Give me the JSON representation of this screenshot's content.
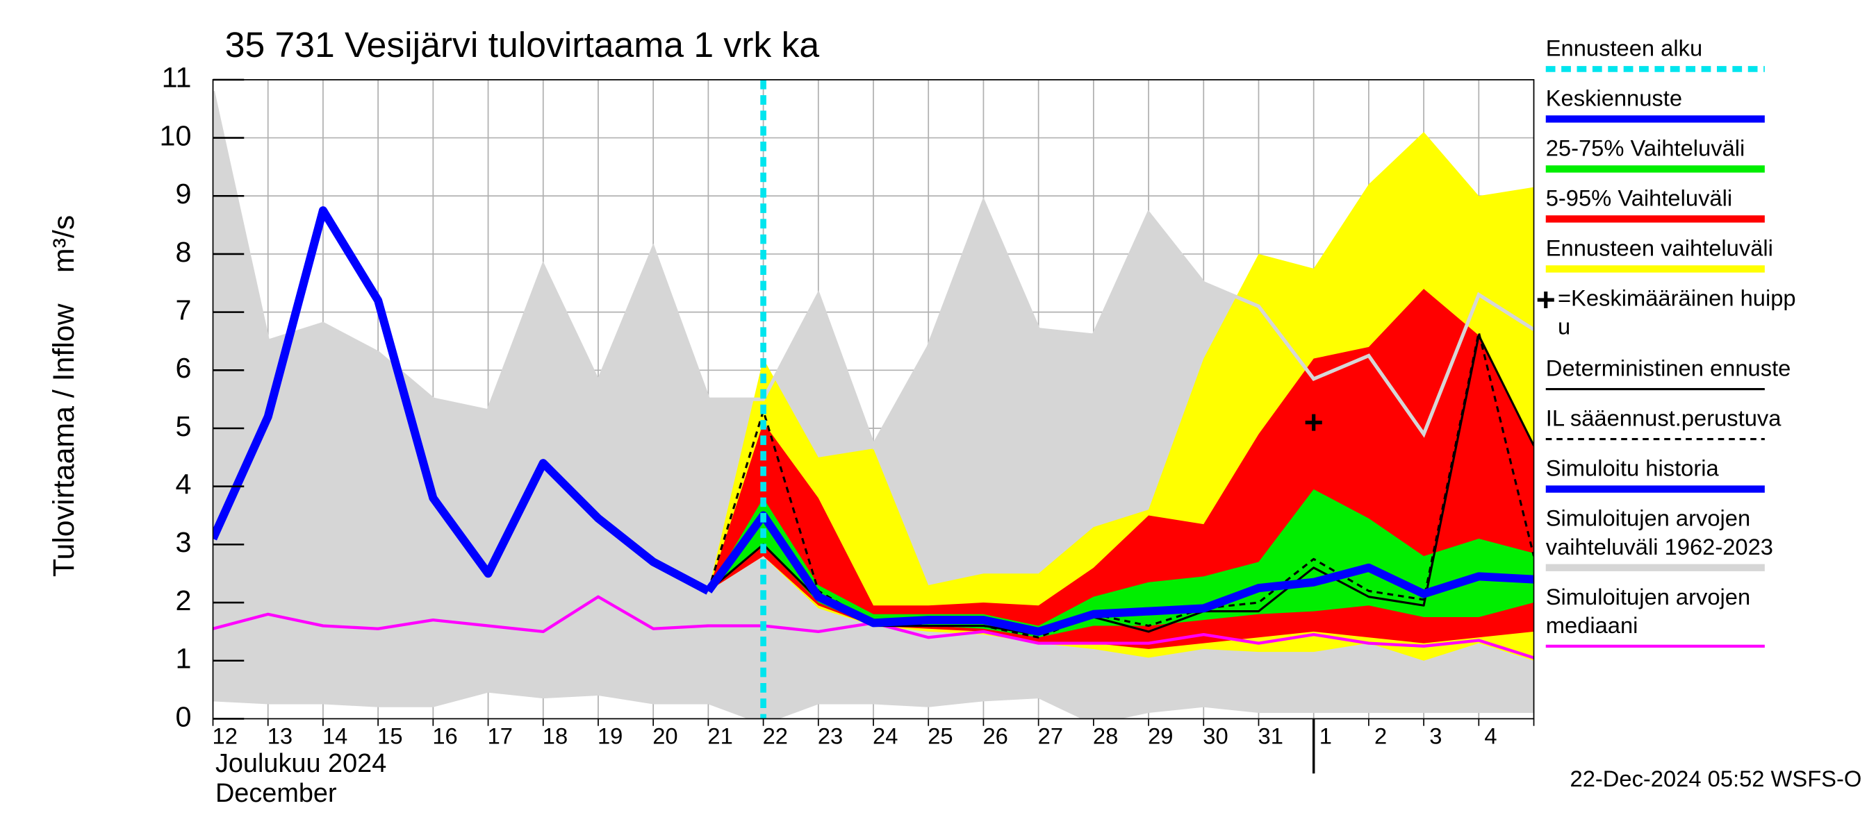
{
  "chart_data": {
    "type": "line",
    "title": "35 731 Vesijärvi tulovirtaama 1 vrk ka",
    "y_label": "Tulovirtaama / Inflow",
    "y_unit": "m³/s",
    "x_label_lines": [
      "Joulukuu  2024",
      "December"
    ],
    "timestamp": "22-Dec-2024 05:52 WSFS-O",
    "categories": [
      "12",
      "13",
      "14",
      "15",
      "16",
      "17",
      "18",
      "19",
      "20",
      "21",
      "22",
      "23",
      "24",
      "25",
      "26",
      "27",
      "28",
      "29",
      "30",
      "31",
      "1",
      "2",
      "3",
      "4",
      null
    ],
    "month_boundaries": [
      20
    ],
    "ylim": [
      0,
      11
    ],
    "yticks": [
      0,
      1,
      2,
      3,
      4,
      5,
      6,
      7,
      8,
      9,
      10,
      11
    ],
    "grid": true,
    "forecast_start": {
      "name": [
        "Ennusteen alku"
      ],
      "color": "#00e5ee",
      "x": 10
    },
    "peak": {
      "name": [
        "=Keskimääräinen huipp",
        "u"
      ],
      "x": 20,
      "y": 5.1
    },
    "bands": [
      {
        "name": [
          "Ennusteen vaihteluväli"
        ],
        "color": "#ffff00",
        "low": [
          null,
          null,
          null,
          null,
          null,
          null,
          null,
          null,
          null,
          2.2,
          2.8,
          1.9,
          1.6,
          1.5,
          1.45,
          1.3,
          1.2,
          1.05,
          1.2,
          1.15,
          1.15,
          1.3,
          1.0,
          1.3,
          1.0
        ],
        "high": [
          null,
          null,
          null,
          null,
          null,
          null,
          null,
          null,
          null,
          2.2,
          6.2,
          4.5,
          4.65,
          2.3,
          2.5,
          2.5,
          3.3,
          3.6,
          6.2,
          8.0,
          7.75,
          9.2,
          10.1,
          9.0,
          9.15
        ]
      },
      {
        "name": [
          "5-95% Vaihteluväli"
        ],
        "color": "#ff0000",
        "low": [
          null,
          null,
          null,
          null,
          null,
          null,
          null,
          null,
          null,
          2.2,
          2.8,
          1.95,
          1.6,
          1.55,
          1.5,
          1.3,
          1.3,
          1.2,
          1.3,
          1.4,
          1.5,
          1.4,
          1.3,
          1.4,
          1.5
        ],
        "high": [
          null,
          null,
          null,
          null,
          null,
          null,
          null,
          null,
          null,
          2.2,
          5.1,
          3.8,
          1.95,
          1.95,
          2.0,
          1.95,
          2.6,
          3.5,
          3.35,
          4.9,
          6.2,
          6.4,
          7.4,
          6.6,
          4.7
        ]
      },
      {
        "name": [
          "25-75% Vaihteluväli"
        ],
        "color": "#00ee00",
        "low": [
          null,
          null,
          null,
          null,
          null,
          null,
          null,
          null,
          null,
          2.2,
          3.0,
          2.0,
          1.6,
          1.6,
          1.55,
          1.4,
          1.6,
          1.6,
          1.7,
          1.8,
          1.85,
          1.95,
          1.75,
          1.75,
          2.0
        ],
        "high": [
          null,
          null,
          null,
          null,
          null,
          null,
          null,
          null,
          null,
          2.2,
          3.8,
          2.3,
          1.8,
          1.8,
          1.8,
          1.6,
          2.1,
          2.35,
          2.45,
          2.7,
          3.95,
          3.45,
          2.8,
          3.1,
          2.85
        ]
      },
      {
        "name": [
          "Simuloitujen arvojen",
          "vaihteluväli 1962-2023"
        ],
        "color": "#d6d6d6",
        "low": [
          0.3,
          0.25,
          0.25,
          0.2,
          0.2,
          0.45,
          0.35,
          0.4,
          0.25,
          0.25,
          -0.1,
          0.25,
          0.25,
          0.2,
          0.3,
          0.35,
          -0.1,
          0.1,
          0.2,
          0.1,
          0.1,
          0.1,
          0.1,
          0.1,
          0.1
        ],
        "high": [
          10.8,
          6.5,
          6.8,
          6.3,
          5.5,
          5.3,
          7.8,
          5.8,
          8.1,
          5.5,
          5.5,
          7.3,
          4.7,
          6.4,
          8.9,
          6.7,
          6.6,
          8.7,
          7.5,
          7.1,
          5.85,
          6.25,
          4.9,
          7.3,
          6.7
        ]
      }
    ],
    "series": [
      {
        "name": [
          "Simuloitu historia"
        ],
        "color": "#0000ff",
        "width": 7,
        "values": [
          3.1,
          5.2,
          8.75,
          7.2,
          3.8,
          2.5,
          4.4,
          3.45,
          2.7,
          2.2,
          null,
          null,
          null,
          null,
          null,
          null,
          null,
          null,
          null,
          null,
          null,
          null,
          null,
          null,
          null
        ]
      },
      {
        "name": [
          "Keskiennuste"
        ],
        "color": "#0000ff",
        "width": 7,
        "values": [
          null,
          null,
          null,
          null,
          null,
          null,
          null,
          null,
          null,
          2.2,
          3.5,
          2.1,
          1.65,
          1.7,
          1.7,
          1.5,
          1.8,
          1.85,
          1.9,
          2.25,
          2.35,
          2.6,
          2.15,
          2.45,
          2.4
        ]
      },
      {
        "name": [
          "Simuloitujen arvojen",
          "mediaani"
        ],
        "color": "#ff00ff",
        "width": 2.5,
        "values": [
          1.55,
          1.8,
          1.6,
          1.55,
          1.7,
          1.6,
          1.5,
          2.1,
          1.55,
          1.6,
          1.6,
          1.5,
          1.65,
          1.4,
          1.5,
          1.3,
          1.3,
          1.3,
          1.45,
          1.3,
          1.45,
          1.3,
          1.25,
          1.35,
          1.05
        ]
      },
      {
        "name": [
          "Deterministinen ennuste"
        ],
        "color": "#000000",
        "width": 1.8,
        "values": [
          null,
          null,
          null,
          null,
          null,
          null,
          null,
          null,
          null,
          2.2,
          3.0,
          2.05,
          1.6,
          1.6,
          1.6,
          1.45,
          1.75,
          1.5,
          1.85,
          1.85,
          2.6,
          2.1,
          1.95,
          6.6,
          4.7
        ]
      },
      {
        "name": [
          "IL sääennust.perustuva"
        ],
        "color": "#000000",
        "width": 1.8,
        "dash": true,
        "values": [
          null,
          null,
          null,
          null,
          null,
          null,
          null,
          null,
          null,
          2.2,
          5.3,
          2.2,
          1.65,
          1.6,
          1.6,
          1.4,
          1.8,
          1.6,
          1.9,
          2.0,
          2.75,
          2.2,
          2.05,
          6.65,
          2.8
        ]
      }
    ]
  }
}
